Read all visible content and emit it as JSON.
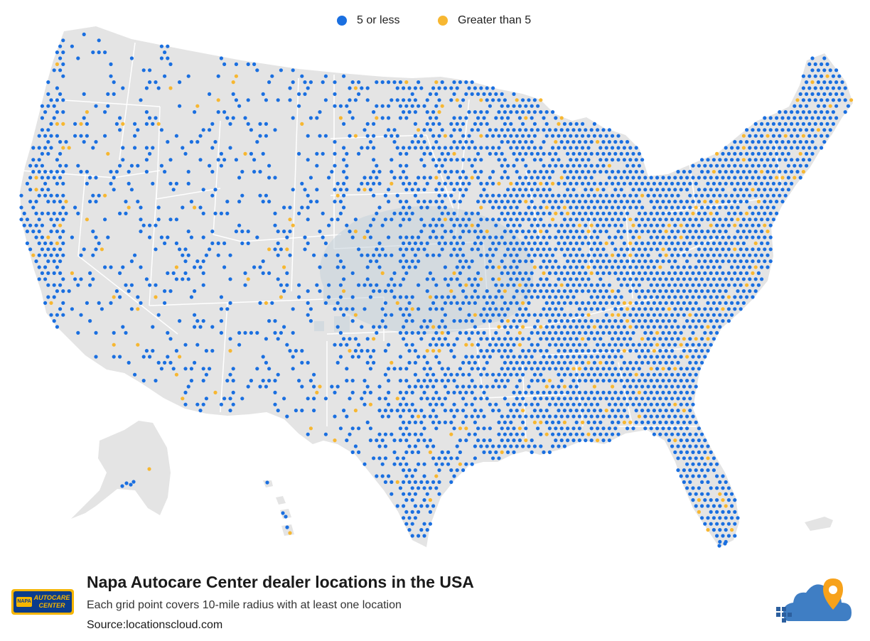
{
  "legend": {
    "small_label": "5 or less",
    "large_label": "Greater than 5"
  },
  "colors": {
    "small_dot": "#1a6fe0",
    "large_dot": "#f7b731",
    "land": "#e4e4e4",
    "border": "#ffffff",
    "watermark": "#c6d2dc"
  },
  "footer": {
    "title": "Napa Autocare Center dealer locations in the USA",
    "subtitle": "Each grid point covers 10-mile radius with at least one location",
    "source": "Source:locationscloud.com"
  },
  "logos": {
    "napa_badge": "NAPA",
    "napa_text_1": "AUTOCARE",
    "napa_text_2": "CENTER"
  }
}
